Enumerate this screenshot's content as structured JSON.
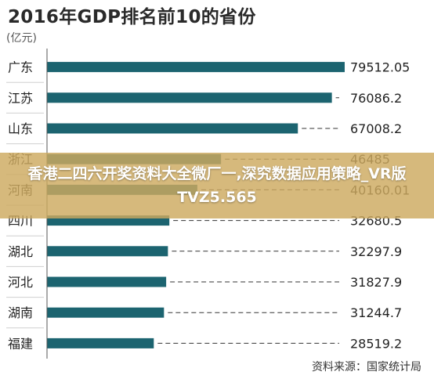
{
  "chart_data": {
    "type": "bar",
    "orientation": "horizontal",
    "title": "2016年GDP排名前10的省份",
    "unit_label": "(亿元)",
    "categories": [
      "广东",
      "江苏",
      "山东",
      "浙江",
      "河南",
      "四川",
      "湖北",
      "河北",
      "湖南",
      "福建"
    ],
    "values": [
      79512.05,
      76086.2,
      67008.2,
      46485,
      40160.01,
      32680.5,
      32297.9,
      31827.9,
      31244.7,
      28519.2
    ],
    "value_labels": [
      "79512.05",
      "76086.2",
      "67008.2",
      "46485",
      "40160.01",
      "32680.5",
      "32297.9",
      "31827.9",
      "31244.7",
      "28519.2"
    ],
    "xlim": [
      0,
      79512.05
    ],
    "grid": false,
    "bar_color": "#1c6470",
    "source": "资料来源：国家统计局"
  },
  "overlay": {
    "text": "香港二四六开奖资料大全微厂一,深究数据应用策略_VR版TVZ5.565"
  }
}
